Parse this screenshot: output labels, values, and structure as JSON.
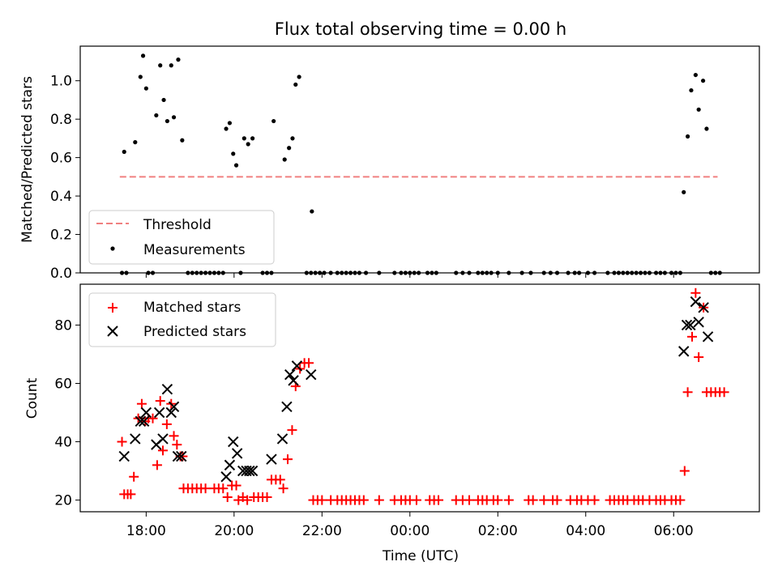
{
  "chart_data": [
    {
      "type": "scatter",
      "title": "Flux total observing time = 0.00 h",
      "xlabel": "",
      "ylabel": "Matched/Predicted stars",
      "ylim": [
        0,
        1.18
      ],
      "yticks": [
        "0.0",
        "0.2",
        "0.4",
        "0.6",
        "0.8",
        "1.0"
      ],
      "x_range_hours": [
        16.5,
        31.95
      ],
      "legend": {
        "placement": "lower-left",
        "entries": [
          "Threshold",
          "Measurements"
        ]
      },
      "threshold": {
        "name": "Threshold",
        "y": 0.5,
        "x": [
          17.4,
          31.0
        ],
        "color": "#f08080"
      },
      "series": [
        {
          "name": "Measurements",
          "color": "#000000",
          "points": [
            [
              17.5,
              0.63
            ],
            [
              17.75,
              0.68
            ],
            [
              17.87,
              1.02
            ],
            [
              17.93,
              1.13
            ],
            [
              18.0,
              0.96
            ],
            [
              18.23,
              0.82
            ],
            [
              18.32,
              1.08
            ],
            [
              18.4,
              0.9
            ],
            [
              18.48,
              0.79
            ],
            [
              18.57,
              1.08
            ],
            [
              18.63,
              0.81
            ],
            [
              18.73,
              1.11
            ],
            [
              18.82,
              0.69
            ],
            [
              19.82,
              0.75
            ],
            [
              19.9,
              0.78
            ],
            [
              19.98,
              0.62
            ],
            [
              20.05,
              0.56
            ],
            [
              20.23,
              0.7
            ],
            [
              20.32,
              0.67
            ],
            [
              20.42,
              0.7
            ],
            [
              20.9,
              0.79
            ],
            [
              21.15,
              0.59
            ],
            [
              21.25,
              0.65
            ],
            [
              21.33,
              0.7
            ],
            [
              21.4,
              0.98
            ],
            [
              21.48,
              1.02
            ],
            [
              21.77,
              0.32
            ],
            [
              30.23,
              0.42
            ],
            [
              30.32,
              0.71
            ],
            [
              30.4,
              0.95
            ],
            [
              30.5,
              1.03
            ],
            [
              30.57,
              0.85
            ],
            [
              30.67,
              1.0
            ],
            [
              30.75,
              0.75
            ],
            [
              17.45,
              0.0
            ],
            [
              17.55,
              0.0
            ],
            [
              18.05,
              0.0
            ],
            [
              18.15,
              0.0
            ],
            [
              18.95,
              0.0
            ],
            [
              19.05,
              0.0
            ],
            [
              19.15,
              0.0
            ],
            [
              19.25,
              0.0
            ],
            [
              19.35,
              0.0
            ],
            [
              19.45,
              0.0
            ],
            [
              19.55,
              0.0
            ],
            [
              19.65,
              0.0
            ],
            [
              19.75,
              0.0
            ],
            [
              20.15,
              0.0
            ],
            [
              20.65,
              0.0
            ],
            [
              20.75,
              0.0
            ],
            [
              20.85,
              0.0
            ],
            [
              21.65,
              0.0
            ],
            [
              21.75,
              0.0
            ],
            [
              21.85,
              0.0
            ],
            [
              21.95,
              0.0
            ],
            [
              22.05,
              0.0
            ],
            [
              22.2,
              0.0
            ],
            [
              22.35,
              0.0
            ],
            [
              22.45,
              0.0
            ],
            [
              22.55,
              0.0
            ],
            [
              22.65,
              0.0
            ],
            [
              22.75,
              0.0
            ],
            [
              22.85,
              0.0
            ],
            [
              23.0,
              0.0
            ],
            [
              23.3,
              0.0
            ],
            [
              23.65,
              0.0
            ],
            [
              23.8,
              0.0
            ],
            [
              23.9,
              0.0
            ],
            [
              24.0,
              0.0
            ],
            [
              24.1,
              0.0
            ],
            [
              24.2,
              0.0
            ],
            [
              24.4,
              0.0
            ],
            [
              24.5,
              0.0
            ],
            [
              24.6,
              0.0
            ],
            [
              25.05,
              0.0
            ],
            [
              25.2,
              0.0
            ],
            [
              25.35,
              0.0
            ],
            [
              25.55,
              0.0
            ],
            [
              25.65,
              0.0
            ],
            [
              25.75,
              0.0
            ],
            [
              25.85,
              0.0
            ],
            [
              26.0,
              0.0
            ],
            [
              26.25,
              0.0
            ],
            [
              26.55,
              0.0
            ],
            [
              26.75,
              0.0
            ],
            [
              27.05,
              0.0
            ],
            [
              27.2,
              0.0
            ],
            [
              27.35,
              0.0
            ],
            [
              27.6,
              0.0
            ],
            [
              27.75,
              0.0
            ],
            [
              27.85,
              0.0
            ],
            [
              28.05,
              0.0
            ],
            [
              28.2,
              0.0
            ],
            [
              28.5,
              0.0
            ],
            [
              28.65,
              0.0
            ],
            [
              28.75,
              0.0
            ],
            [
              28.85,
              0.0
            ],
            [
              28.95,
              0.0
            ],
            [
              29.05,
              0.0
            ],
            [
              29.15,
              0.0
            ],
            [
              29.25,
              0.0
            ],
            [
              29.35,
              0.0
            ],
            [
              29.45,
              0.0
            ],
            [
              29.6,
              0.0
            ],
            [
              29.7,
              0.0
            ],
            [
              29.8,
              0.0
            ],
            [
              29.95,
              0.0
            ],
            [
              30.05,
              0.0
            ],
            [
              30.15,
              0.0
            ],
            [
              30.85,
              0.0
            ],
            [
              30.95,
              0.0
            ],
            [
              31.05,
              0.0
            ]
          ]
        }
      ]
    },
    {
      "type": "scatter",
      "title": "",
      "xlabel": "Time (UTC)",
      "ylabel": "Count",
      "ylim": [
        16,
        94
      ],
      "yticks": [
        "20",
        "40",
        "60",
        "80"
      ],
      "xtick_labels": [
        "18:00",
        "20:00",
        "22:00",
        "00:00",
        "02:00",
        "04:00",
        "06:00"
      ],
      "x_range_hours": [
        16.5,
        31.95
      ],
      "legend": {
        "placement": "upper-left",
        "entries": [
          "Matched stars",
          "Predicted stars"
        ]
      },
      "series": [
        {
          "name": "Matched stars",
          "color": "#ff0000",
          "marker": "plus",
          "points": [
            [
              17.45,
              40
            ],
            [
              17.5,
              22
            ],
            [
              17.58,
              22
            ],
            [
              17.65,
              22
            ],
            [
              17.72,
              28
            ],
            [
              17.82,
              48
            ],
            [
              17.9,
              53
            ],
            [
              17.98,
              47
            ],
            [
              18.05,
              48
            ],
            [
              18.15,
              48
            ],
            [
              18.25,
              32
            ],
            [
              18.32,
              54
            ],
            [
              18.38,
              37
            ],
            [
              18.47,
              46
            ],
            [
              18.57,
              53
            ],
            [
              18.63,
              42
            ],
            [
              18.7,
              39
            ],
            [
              18.78,
              35
            ],
            [
              18.83,
              35
            ],
            [
              18.85,
              24
            ],
            [
              18.95,
              24
            ],
            [
              19.05,
              24
            ],
            [
              19.15,
              24
            ],
            [
              19.25,
              24
            ],
            [
              19.35,
              24
            ],
            [
              19.55,
              24
            ],
            [
              19.65,
              24
            ],
            [
              19.75,
              24
            ],
            [
              19.85,
              21
            ],
            [
              19.95,
              25
            ],
            [
              20.05,
              25
            ],
            [
              20.1,
              20
            ],
            [
              20.2,
              21
            ],
            [
              20.3,
              20
            ],
            [
              20.45,
              21
            ],
            [
              20.55,
              21
            ],
            [
              20.65,
              21
            ],
            [
              20.75,
              21
            ],
            [
              20.85,
              27
            ],
            [
              20.95,
              27
            ],
            [
              21.05,
              27
            ],
            [
              21.12,
              24
            ],
            [
              21.22,
              34
            ],
            [
              21.32,
              44
            ],
            [
              21.4,
              59
            ],
            [
              21.5,
              65
            ],
            [
              21.6,
              67
            ],
            [
              21.7,
              67
            ],
            [
              21.8,
              20
            ],
            [
              21.9,
              20
            ],
            [
              22.0,
              20
            ],
            [
              22.2,
              20
            ],
            [
              22.35,
              20
            ],
            [
              22.45,
              20
            ],
            [
              22.55,
              20
            ],
            [
              22.65,
              20
            ],
            [
              22.75,
              20
            ],
            [
              22.85,
              20
            ],
            [
              22.95,
              20
            ],
            [
              23.3,
              20
            ],
            [
              23.65,
              20
            ],
            [
              23.8,
              20
            ],
            [
              23.9,
              20
            ],
            [
              24.0,
              20
            ],
            [
              24.15,
              20
            ],
            [
              24.45,
              20
            ],
            [
              24.55,
              20
            ],
            [
              24.65,
              20
            ],
            [
              25.05,
              20
            ],
            [
              25.2,
              20
            ],
            [
              25.35,
              20
            ],
            [
              25.55,
              20
            ],
            [
              25.65,
              20
            ],
            [
              25.75,
              20
            ],
            [
              25.9,
              20
            ],
            [
              26.0,
              20
            ],
            [
              26.25,
              20
            ],
            [
              26.7,
              20
            ],
            [
              26.8,
              20
            ],
            [
              27.05,
              20
            ],
            [
              27.25,
              20
            ],
            [
              27.35,
              20
            ],
            [
              27.65,
              20
            ],
            [
              27.8,
              20
            ],
            [
              27.9,
              20
            ],
            [
              28.05,
              20
            ],
            [
              28.2,
              20
            ],
            [
              28.55,
              20
            ],
            [
              28.65,
              20
            ],
            [
              28.75,
              20
            ],
            [
              28.85,
              20
            ],
            [
              28.95,
              20
            ],
            [
              29.1,
              20
            ],
            [
              29.2,
              20
            ],
            [
              29.3,
              20
            ],
            [
              29.45,
              20
            ],
            [
              29.6,
              20
            ],
            [
              29.7,
              20
            ],
            [
              29.8,
              20
            ],
            [
              29.95,
              20
            ],
            [
              30.05,
              20
            ],
            [
              30.15,
              20
            ],
            [
              30.25,
              30
            ],
            [
              30.32,
              57
            ],
            [
              30.42,
              76
            ],
            [
              30.5,
              91
            ],
            [
              30.57,
              69
            ],
            [
              30.68,
              86
            ],
            [
              30.75,
              57
            ],
            [
              30.85,
              57
            ],
            [
              30.95,
              57
            ],
            [
              31.05,
              57
            ],
            [
              31.15,
              57
            ]
          ]
        },
        {
          "name": "Predicted stars",
          "color": "#000000",
          "marker": "x",
          "points": [
            [
              17.5,
              35
            ],
            [
              17.75,
              41
            ],
            [
              17.87,
              47
            ],
            [
              17.95,
              47
            ],
            [
              18.0,
              50
            ],
            [
              18.23,
              39
            ],
            [
              18.3,
              50
            ],
            [
              18.38,
              41
            ],
            [
              18.48,
              58
            ],
            [
              18.57,
              50
            ],
            [
              18.63,
              52
            ],
            [
              18.72,
              35
            ],
            [
              18.8,
              35
            ],
            [
              19.82,
              28
            ],
            [
              19.9,
              32
            ],
            [
              19.98,
              40
            ],
            [
              20.07,
              36
            ],
            [
              20.2,
              30
            ],
            [
              20.28,
              30
            ],
            [
              20.35,
              30
            ],
            [
              20.42,
              30
            ],
            [
              20.85,
              34
            ],
            [
              21.1,
              41
            ],
            [
              21.2,
              52
            ],
            [
              21.27,
              63
            ],
            [
              21.35,
              61
            ],
            [
              21.43,
              66
            ],
            [
              21.75,
              63
            ],
            [
              30.23,
              71
            ],
            [
              30.3,
              80
            ],
            [
              30.38,
              80
            ],
            [
              30.5,
              88
            ],
            [
              30.57,
              81
            ],
            [
              30.68,
              86
            ],
            [
              30.78,
              76
            ]
          ]
        }
      ]
    }
  ]
}
